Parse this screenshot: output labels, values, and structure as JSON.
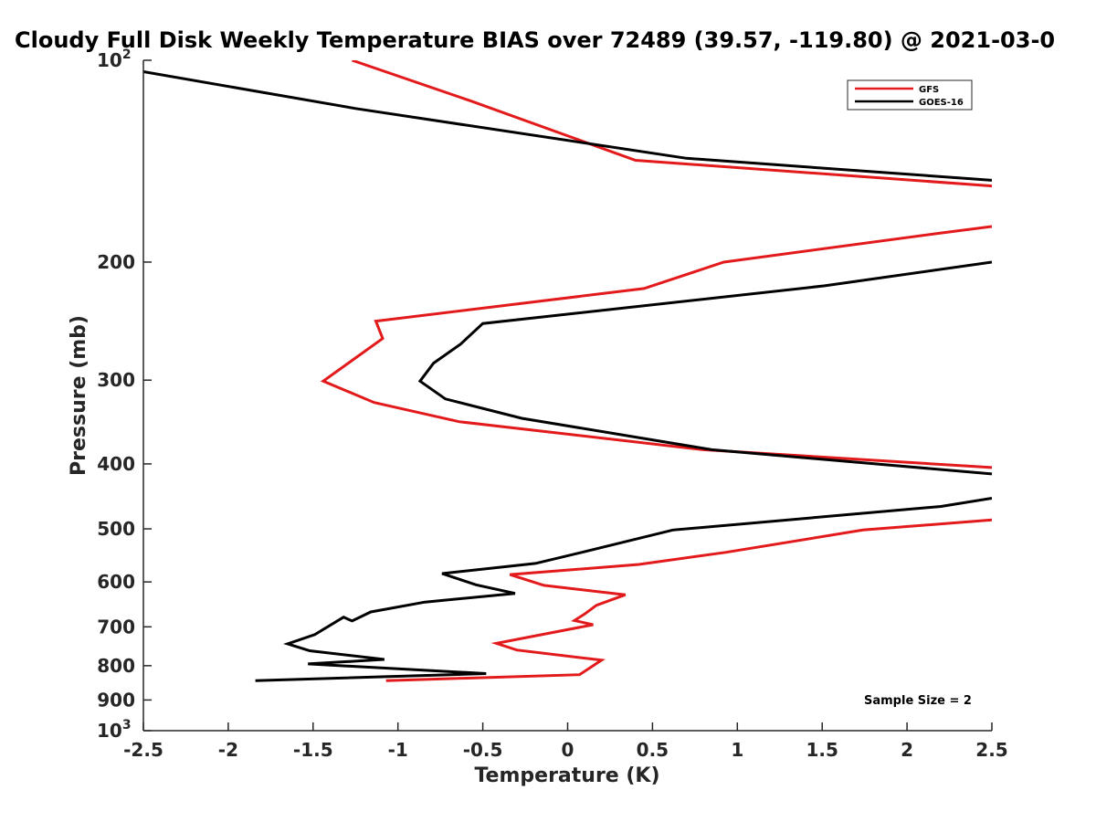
{
  "chart_data": {
    "type": "line",
    "title": "Cloudy Full Disk Weekly Temperature BIAS over 72489 (39.57, -119.80) @ 2021-03-0",
    "xlabel": "Temperature (K)",
    "ylabel": "Pressure (mb)",
    "xlim": [
      -2.5,
      2.5
    ],
    "ylim": [
      1000,
      100
    ],
    "yscale": "log",
    "y_reversed": true,
    "grid": false,
    "legend_position": "top-right",
    "x_ticks": [
      "-2.5",
      "-2",
      "-1.5",
      "-1",
      "-0.5",
      "0",
      "0.5",
      "1",
      "1.5",
      "2",
      "2.5"
    ],
    "y_ticks": [
      {
        "value": 100,
        "label": "10",
        "sup": "2"
      },
      {
        "value": 200,
        "label": "200",
        "sup": ""
      },
      {
        "value": 300,
        "label": "300",
        "sup": ""
      },
      {
        "value": 400,
        "label": "400",
        "sup": ""
      },
      {
        "value": 500,
        "label": "500",
        "sup": ""
      },
      {
        "value": 600,
        "label": "600",
        "sup": ""
      },
      {
        "value": 700,
        "label": "700",
        "sup": ""
      },
      {
        "value": 800,
        "label": "800",
        "sup": ""
      },
      {
        "value": 900,
        "label": "900",
        "sup": ""
      },
      {
        "value": 1000,
        "label": "10",
        "sup": "3"
      }
    ],
    "series": [
      {
        "name": "GFS",
        "color": "#e31a1c",
        "points": [
          [
            -1.27,
            100
          ],
          [
            -0.57,
            115
          ],
          [
            0.4,
            141
          ],
          [
            2.5,
            154
          ],
          [
            null,
            null
          ],
          [
            2.5,
            177
          ],
          [
            2.2,
            181
          ],
          [
            0.92,
            200
          ],
          [
            0.45,
            219
          ],
          [
            -1.13,
            245
          ],
          [
            -1.09,
            260
          ],
          [
            -1.25,
            278
          ],
          [
            -1.44,
            301
          ],
          [
            -1.14,
            324
          ],
          [
            -0.64,
            346
          ],
          [
            0.8,
            381
          ],
          [
            2.5,
            405
          ],
          [
            null,
            null
          ],
          [
            2.5,
            485
          ],
          [
            1.74,
            502
          ],
          [
            0.93,
            542
          ],
          [
            0.42,
            565
          ],
          [
            -0.34,
            585
          ],
          [
            -0.14,
            607
          ],
          [
            0.34,
            627
          ],
          [
            0.17,
            650
          ],
          [
            0.1,
            670
          ],
          [
            0.04,
            685
          ],
          [
            0.15,
            695
          ],
          [
            -0.42,
            741
          ],
          [
            -0.3,
            758
          ],
          [
            0.2,
            785
          ],
          [
            0.07,
            825
          ],
          [
            -1.07,
            842
          ]
        ]
      },
      {
        "name": "GOES-16",
        "color": "#000000",
        "points": [
          [
            -2.5,
            104
          ],
          [
            -1.25,
            118
          ],
          [
            0.7,
            140
          ],
          [
            2.5,
            151
          ],
          [
            null,
            null
          ],
          [
            2.5,
            200
          ],
          [
            1.51,
            217
          ],
          [
            -0.5,
            247
          ],
          [
            -0.63,
            265
          ],
          [
            -0.79,
            283
          ],
          [
            -0.87,
            301
          ],
          [
            -0.72,
            320
          ],
          [
            -0.27,
            342
          ],
          [
            0.85,
            381
          ],
          [
            2.5,
            414
          ],
          [
            null,
            null
          ],
          [
            2.5,
            450
          ],
          [
            2.2,
            463
          ],
          [
            0.62,
            502
          ],
          [
            0.11,
            540
          ],
          [
            -0.19,
            563
          ],
          [
            -0.74,
            583
          ],
          [
            -0.54,
            606
          ],
          [
            -0.31,
            624
          ],
          [
            -0.84,
            643
          ],
          [
            -1.16,
            665
          ],
          [
            -1.27,
            686
          ],
          [
            -1.32,
            677
          ],
          [
            -1.49,
            719
          ],
          [
            -1.65,
            742
          ],
          [
            -1.52,
            760
          ],
          [
            -1.08,
            783
          ],
          [
            -1.53,
            795
          ],
          [
            -0.48,
            822
          ],
          [
            -1.84,
            842
          ]
        ]
      }
    ],
    "annotations": [
      "Sample Size = 2"
    ]
  }
}
